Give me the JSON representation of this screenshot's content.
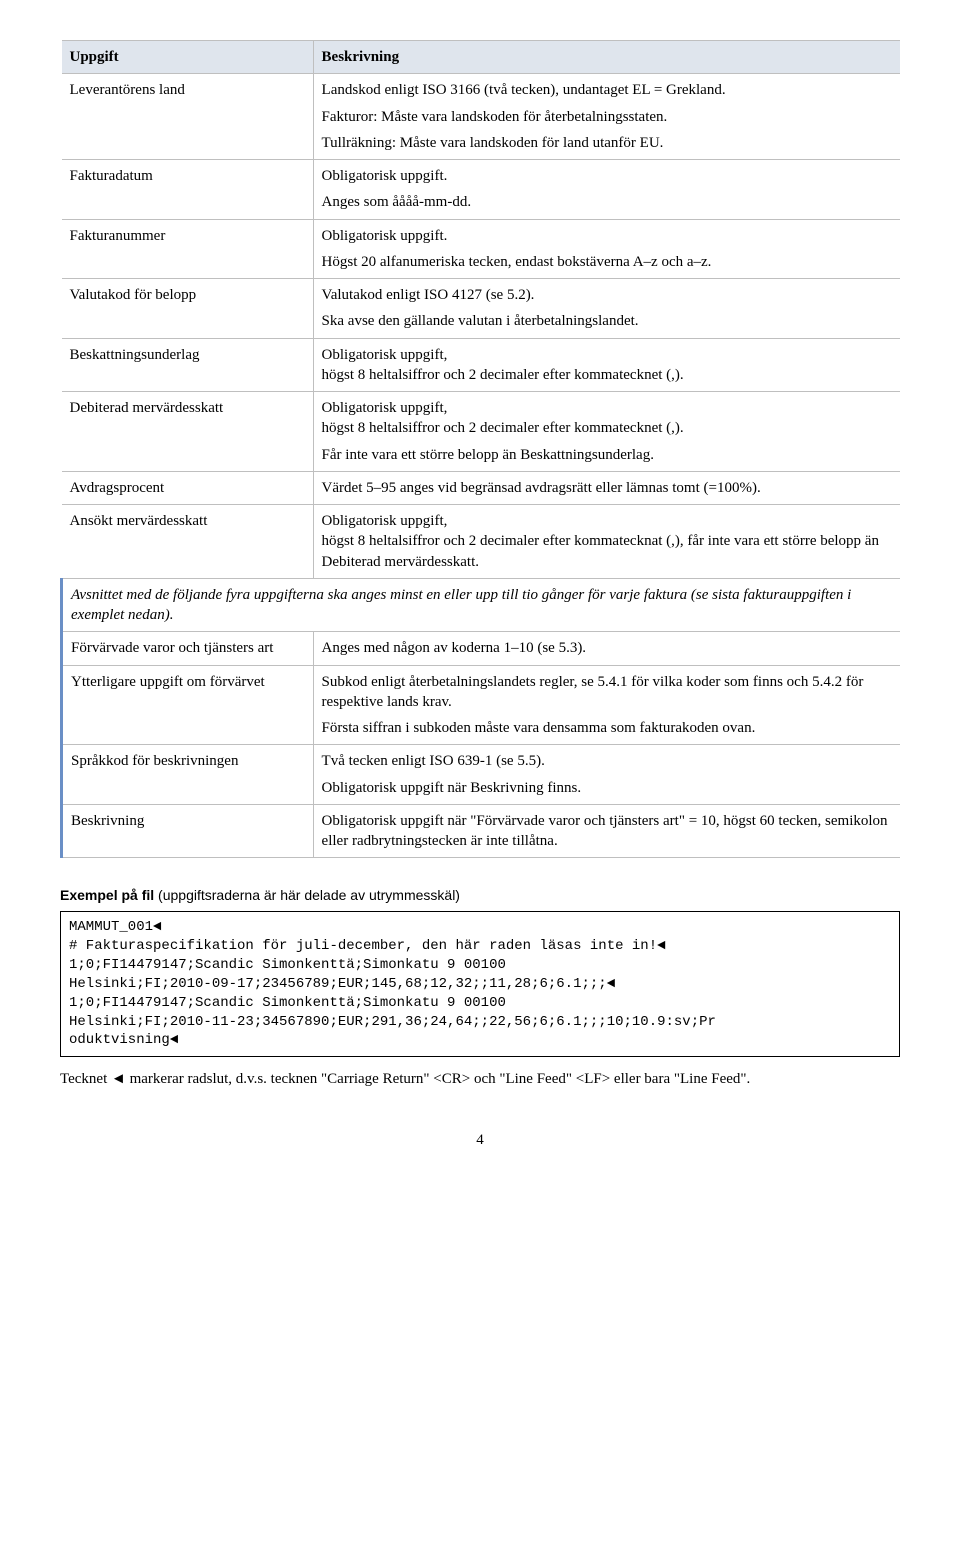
{
  "table": {
    "header": {
      "c1": "Uppgift",
      "c2": "Beskrivning"
    },
    "rows": [
      {
        "c1": "Leverantörens land",
        "c2": [
          "Landskod enligt ISO 3166 (två tecken), undantaget EL = Grekland.",
          "Fakturor: Måste vara landskoden för återbetalningsstaten.",
          "Tullräkning: Måste vara landskoden för land utanför EU."
        ]
      },
      {
        "c1": "Fakturadatum",
        "c2": [
          "Obligatorisk uppgift.",
          "Anges som åååå-mm-dd."
        ]
      },
      {
        "c1": "Fakturanummer",
        "c2": [
          "Obligatorisk uppgift.",
          "Högst 20 alfanumeriska tecken, endast bokstäverna A–z och a–z."
        ]
      },
      {
        "c1": "Valutakod för belopp",
        "c2": [
          "Valutakod enligt ISO 4127 (se 5.2).",
          "Ska avse den gällande valutan i återbetalningslandet."
        ]
      },
      {
        "c1": "Beskattningsunderlag",
        "c2": [
          "Obligatorisk uppgift,",
          "högst 8 heltalsiffror och 2 decimaler efter kommatecknet (,)."
        ]
      },
      {
        "c1": "Debiterad mervärdesskatt",
        "c2": [
          "Obligatorisk uppgift,",
          "högst 8 heltalsiffror och 2 decimaler efter kommatecknet (,).",
          "Får inte vara ett större belopp än Beskattningsunderlag."
        ]
      },
      {
        "c1": "Avdragsprocent",
        "c2": [
          "Värdet 5–95 anges vid begränsad avdragsrätt eller lämnas tomt (=100%)."
        ]
      },
      {
        "c1": "Ansökt mervärdesskatt",
        "c2": [
          "Obligatorisk uppgift,",
          "högst 8 heltalsiffror och 2 decimaler efter kommatecknat (,), får inte vara ett större belopp än Debiterad mervärdesskatt."
        ]
      }
    ],
    "note": "Avsnittet med de följande fyra uppgifterna ska anges minst en eller upp till tio gånger för varje faktura (se sista fakturauppgiften i exemplet nedan).",
    "rows2": [
      {
        "c1": "Förvärvade varor och tjänsters art",
        "c2": [
          "Anges med någon av koderna 1–10 (se 5.3)."
        ]
      },
      {
        "c1": "Ytterligare uppgift om förvärvet",
        "c2": [
          "Subkod enligt återbetalningslandets regler, se 5.4.1 för vilka koder som finns och 5.4.2 för respektive lands krav.",
          "Första siffran i subkoden måste vara densamma som fakturakoden ovan."
        ]
      },
      {
        "c1": "Språkkod för beskrivningen",
        "c2": [
          "Två tecken enligt ISO 639-1 (se 5.5).",
          "Obligatorisk uppgift när Beskrivning finns."
        ]
      },
      {
        "c1": "Beskrivning",
        "c2": [
          "Obligatorisk uppgift när \"Förvärvade varor och tjänsters art\" = 10, högst 60 tecken, semikolon eller radbrytningstecken är inte tillåtna."
        ]
      }
    ]
  },
  "example": {
    "title_bold": "Exempel på fil",
    "title_paren": " (uppgiftsraderna är här delade av utrymmesskäl)",
    "code": "MAMMUT_001◄\n# Fakturaspecifikation för juli-december, den här raden läsas inte in!◄\n1;0;FI14479147;Scandic Simonkenttä;Simonkatu 9 00100\nHelsinki;FI;2010-09-17;23456789;EUR;145,68;12,32;;11,28;6;6.1;;;◄\n1;0;FI14479147;Scandic Simonkenttä;Simonkatu 9 00100\nHelsinki;FI;2010-11-23;34567890;EUR;291,36;24,64;;22,56;6;6.1;;;10;10.9:sv;Pr\noduktvisning◄"
  },
  "footer_note": "Tecknet ◄ markerar radslut, d.v.s. tecknen \"Carriage Return\" <CR> och \"Line Feed\" <LF> eller bara \"Line Feed\".",
  "page_number": "4"
}
